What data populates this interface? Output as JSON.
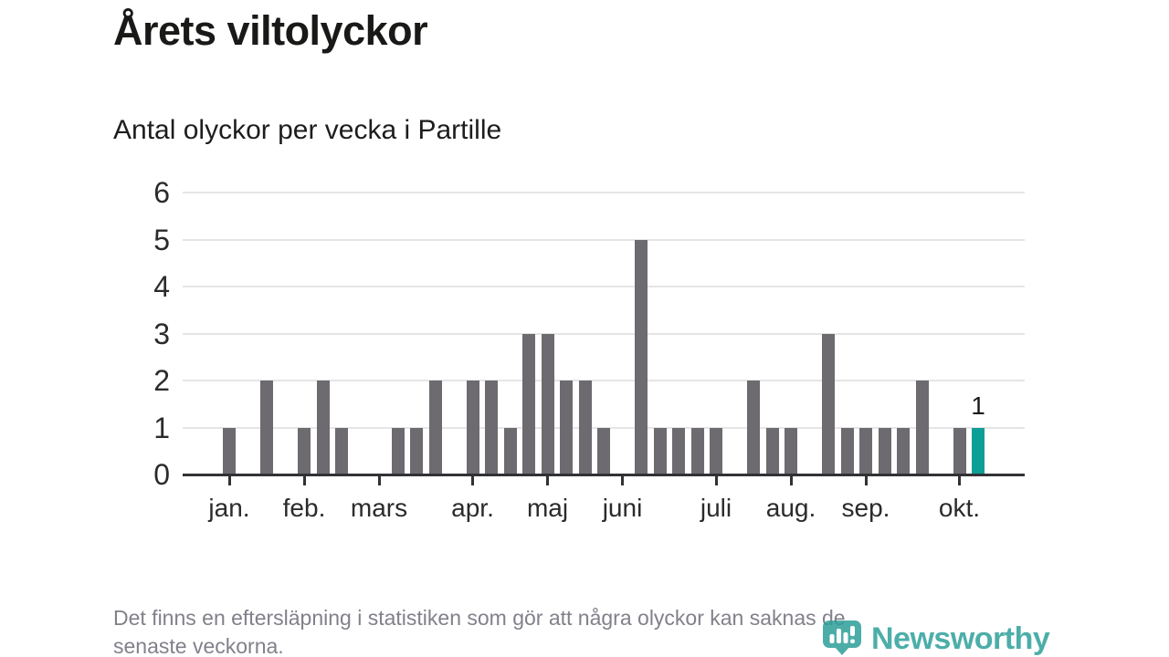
{
  "title": "Årets viltolyckor",
  "subtitle": "Antal olyckor per vecka i Partille",
  "footnote": {
    "line1": "Det finns en eftersläpning i statistiken som gör att några olyckor kan saknas de",
    "line2": "senaste veckorna."
  },
  "logo": {
    "text": "Newsworthy",
    "color": "#2da19b",
    "icon": "newsworthy-speech-bubble-bar-chart"
  },
  "chart_data": {
    "type": "bar",
    "title": "Årets viltolyckor",
    "subtitle": "Antal olyckor per vecka i Partille",
    "x_unit": "week_number",
    "weeks": [
      1,
      2,
      3,
      4,
      5,
      6,
      7,
      8,
      9,
      10,
      11,
      12,
      13,
      14,
      15,
      16,
      17,
      18,
      19,
      20,
      21,
      22,
      23,
      24,
      25,
      26,
      27,
      28,
      29,
      30,
      31,
      32,
      33,
      34,
      35,
      36,
      37,
      38,
      39,
      40,
      41
    ],
    "values": [
      1,
      0,
      2,
      0,
      1,
      2,
      1,
      0,
      0,
      1,
      1,
      2,
      0,
      2,
      2,
      1,
      3,
      3,
      2,
      2,
      1,
      0,
      5,
      1,
      1,
      1,
      1,
      0,
      2,
      1,
      1,
      0,
      3,
      1,
      1,
      1,
      1,
      2,
      0,
      1,
      1
    ],
    "series": [
      {
        "name": "Antal olyckor per vecka",
        "values": [
          1,
          0,
          2,
          0,
          1,
          2,
          1,
          0,
          0,
          1,
          1,
          2,
          0,
          2,
          2,
          1,
          3,
          3,
          2,
          2,
          1,
          0,
          5,
          1,
          1,
          1,
          1,
          0,
          2,
          1,
          1,
          0,
          3,
          1,
          1,
          1,
          1,
          2,
          0,
          1,
          1
        ]
      }
    ],
    "month_ticks": [
      {
        "label": "jan.",
        "week": 1
      },
      {
        "label": "feb.",
        "week": 5
      },
      {
        "label": "mars",
        "week": 9
      },
      {
        "label": "apr.",
        "week": 14
      },
      {
        "label": "maj",
        "week": 18
      },
      {
        "label": "juni",
        "week": 22
      },
      {
        "label": "juli",
        "week": 27
      },
      {
        "label": "aug.",
        "week": 31
      },
      {
        "label": "sep.",
        "week": 35
      },
      {
        "label": "okt.",
        "week": 40
      }
    ],
    "yticks": [
      0,
      1,
      2,
      3,
      4,
      5,
      6
    ],
    "ylim": [
      0,
      6
    ],
    "grid": true,
    "legend_position": "none",
    "bar_color": "#6d6a70",
    "highlight": {
      "week": 41,
      "value": 1,
      "label": "1",
      "color": "#0d9e96"
    }
  }
}
